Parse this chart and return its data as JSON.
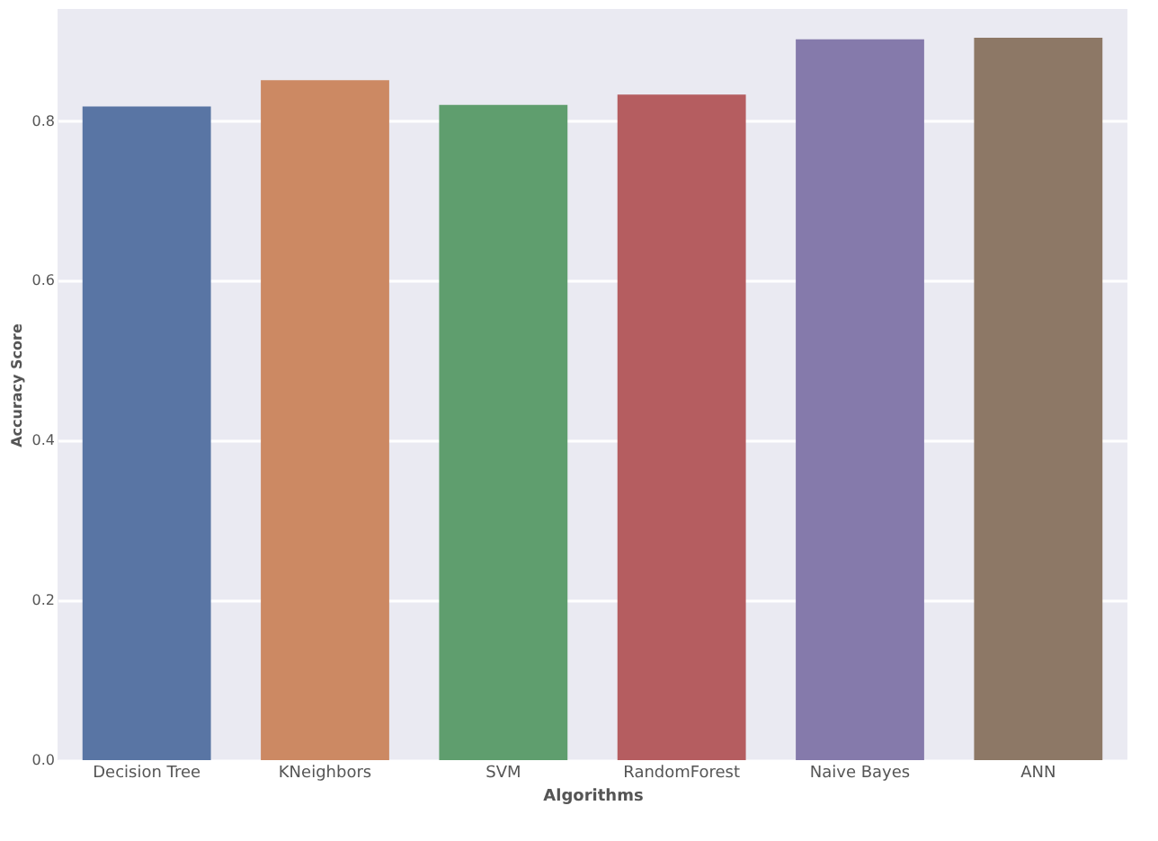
{
  "chart_data": {
    "type": "bar",
    "xlabel": "Algorithms",
    "ylabel": "Accuracy Score",
    "categories": [
      "Decision Tree",
      "KNeighbors",
      "SVM",
      "RandomForest",
      "Naive Bayes",
      "ANN"
    ],
    "values": [
      0.818,
      0.851,
      0.82,
      0.833,
      0.902,
      0.904
    ],
    "colors": [
      "#5975a4",
      "#cc8963",
      "#5f9e6e",
      "#b55d60",
      "#857aab",
      "#8d7866"
    ],
    "ylim": [
      0,
      0.94
    ],
    "yticks": [
      {
        "value": 0,
        "label": "0.0"
      },
      {
        "value": 0.2,
        "label": "0.2"
      },
      {
        "value": 0.4,
        "label": "0.4"
      },
      {
        "value": 0.6,
        "label": "0.6"
      },
      {
        "value": 0.8,
        "label": "0.8"
      }
    ],
    "grid": "y",
    "legend": false
  }
}
